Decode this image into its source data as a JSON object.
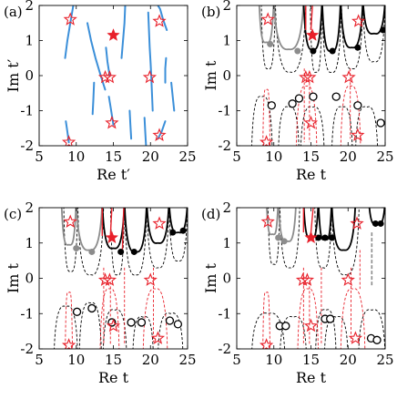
{
  "chart_data": [
    {
      "panel": "(a)",
      "type": "line",
      "xlabel": "Re t′",
      "ylabel": "Im t′",
      "xlim": [
        5,
        25
      ],
      "ylim": [
        -2,
        2
      ],
      "xticks": [
        "5",
        "10",
        "15",
        "20",
        "25"
      ],
      "yticks": [
        "-2",
        "-1",
        "0",
        "1",
        "2"
      ],
      "colors": {
        "curve": "#3b8fd9",
        "star": "#e8202a"
      },
      "curves": [
        [
          [
            9.6,
            2.0
          ],
          [
            9.2,
            1.5
          ],
          [
            8.8,
            1.0
          ],
          [
            8.5,
            0.5
          ]
        ],
        [
          [
            8.6,
            -1.3
          ],
          [
            8.8,
            -1.6
          ],
          [
            9.0,
            -1.9
          ]
        ],
        [
          [
            11.5,
            1.5
          ],
          [
            12.0,
            1.0
          ],
          [
            12.6,
            0.5
          ],
          [
            13.3,
            0.0
          ],
          [
            13.9,
            -0.4
          ]
        ],
        [
          [
            12.4,
            -0.2
          ],
          [
            12.3,
            -0.7
          ],
          [
            12.2,
            -1.1
          ]
        ],
        [
          [
            14.0,
            0.8
          ],
          [
            14.2,
            0.4
          ],
          [
            14.5,
            0.0
          ]
        ],
        [
          [
            14.4,
            -0.6
          ],
          [
            14.7,
            -1.0
          ],
          [
            15.0,
            -1.4
          ]
        ],
        [
          [
            16.6,
            2.0
          ],
          [
            16.5,
            1.5
          ],
          [
            16.3,
            1.0
          ],
          [
            16.1,
            0.5
          ]
        ],
        [
          [
            17.2,
            -1.0
          ],
          [
            17.3,
            -1.4
          ],
          [
            17.4,
            -1.8
          ]
        ],
        [
          [
            19.7,
            1.8
          ],
          [
            19.8,
            1.3
          ],
          [
            19.9,
            0.8
          ],
          [
            20.0,
            0.4
          ],
          [
            20.1,
            0.0
          ],
          [
            20.2,
            -0.5
          ],
          [
            20.3,
            -1.0
          ]
        ],
        [
          [
            19.2,
            -1.2
          ],
          [
            19.3,
            -1.6
          ],
          [
            19.4,
            -2.0
          ]
        ],
        [
          [
            21.0,
            2.0
          ],
          [
            21.3,
            1.9
          ],
          [
            21.7,
            1.6
          ],
          [
            22.2,
            1.3
          ]
        ],
        [
          [
            22.1,
            0.5
          ],
          [
            22.0,
            0.2
          ],
          [
            22.0,
            -0.2
          ]
        ],
        [
          [
            22.8,
            -0.2
          ],
          [
            23.0,
            -0.6
          ],
          [
            23.2,
            -1.0
          ]
        ],
        [
          [
            22.0,
            -1.3
          ],
          [
            21.5,
            -1.6
          ],
          [
            21.0,
            -1.8
          ]
        ]
      ],
      "open_stars": [
        [
          9.2,
          1.6
        ],
        [
          13.9,
          -0.05
        ],
        [
          14.5,
          -0.05
        ],
        [
          14.8,
          -1.35
        ],
        [
          19.9,
          -0.05
        ],
        [
          21.2,
          1.55
        ],
        [
          21.2,
          -1.7
        ],
        [
          9.0,
          -1.9
        ]
      ],
      "filled_stars": [
        [
          15.0,
          1.15
        ]
      ]
    },
    {
      "panel": "(b)",
      "type": "line",
      "xlabel": "Re t",
      "ylabel": "Im t",
      "xlim": [
        5,
        25
      ],
      "ylim": [
        -2,
        2
      ],
      "xticks": [
        "5",
        "10",
        "15",
        "20",
        "25"
      ],
      "yticks": [
        "-2",
        "-1",
        "0",
        "1",
        "2"
      ],
      "colors": {
        "black": "#000000",
        "gray": "#8c8c8c",
        "red": "#e8202a"
      },
      "solid_arcs": [
        {
          "x1": 8,
          "x2": 10,
          "bottom": 0.95,
          "color": "gray"
        },
        {
          "x1": 10,
          "x2": 14,
          "bottom": 0.75,
          "color": "gray"
        },
        {
          "x1": 14,
          "x2": 16.5,
          "bottom": 0.75,
          "color": "black"
        },
        {
          "x1": 16.5,
          "x2": 19,
          "bottom": 0.7,
          "color": "black"
        },
        {
          "x1": 19,
          "x2": 22,
          "bottom": 0.8,
          "color": "black"
        },
        {
          "x1": 22,
          "x2": 25,
          "bottom": 1.2,
          "color": "black"
        }
      ],
      "red_lines": [
        [
          14.3,
          1.3,
          14.3,
          2.0
        ],
        [
          15.0,
          1.3,
          15.2,
          2.0
        ]
      ],
      "dashed_arcs": [
        {
          "x1": 8.3,
          "x2": 10.2,
          "bottom": 0.2,
          "color": "black"
        },
        {
          "x1": 10.2,
          "x2": 14.3,
          "bottom": 0.1,
          "color": "black"
        },
        {
          "x1": 14.9,
          "x2": 16.5,
          "bottom": 0.1,
          "color": "black"
        },
        {
          "x1": 16.5,
          "x2": 19.1,
          "bottom": 0.1,
          "color": "black"
        },
        {
          "x1": 19.1,
          "x2": 22,
          "bottom": 0.2,
          "color": "black"
        },
        {
          "x1": 22,
          "x2": 25,
          "bottom": 0.4,
          "color": "black"
        }
      ],
      "dashed_loops": [
        {
          "x1": 7,
          "x2": 9.8,
          "top": -0.6,
          "color": "black"
        },
        {
          "x1": 10.6,
          "x2": 13.4,
          "top": -0.9,
          "color": "black"
        },
        {
          "x1": 13.6,
          "x2": 16.8,
          "top": -0.9,
          "color": "black"
        },
        {
          "x1": 17.8,
          "x2": 20.6,
          "top": -0.9,
          "color": "black"
        },
        {
          "x1": 21.0,
          "x2": 24.0,
          "top": -0.9,
          "color": "black"
        },
        {
          "x1": 8.5,
          "x2": 9.5,
          "top": -0.4,
          "color": "red"
        },
        {
          "x1": 13.0,
          "x2": 15.8,
          "top": -0.3,
          "color": "red"
        },
        {
          "x1": 19.0,
          "x2": 21.7,
          "top": -0.3,
          "color": "red"
        }
      ],
      "red_dashed_vertical": [
        [
          14.1,
          0.2,
          14.1,
          -1.9
        ],
        [
          14.8,
          -0.2,
          14.8,
          -1.9
        ],
        [
          20.3,
          0.2,
          20.3,
          -1.8
        ]
      ],
      "open_stars": [
        [
          9.2,
          1.6
        ],
        [
          14.3,
          -0.05
        ],
        [
          14.8,
          -0.05
        ],
        [
          15.0,
          -1.35
        ],
        [
          20.1,
          -0.05
        ],
        [
          21.4,
          1.55
        ],
        [
          21.3,
          -1.7
        ],
        [
          9.0,
          -1.9
        ]
      ],
      "filled_stars": [
        [
          15.2,
          1.15
        ]
      ],
      "filled_dots_gray": [
        [
          9.5,
          0.9
        ],
        [
          13.2,
          0.7
        ]
      ],
      "filled_dots_black": [
        [
          15.3,
          0.7
        ],
        [
          17.9,
          0.7
        ],
        [
          21.3,
          0.8
        ],
        [
          24.7,
          1.3
        ]
      ],
      "open_circles": [
        [
          9.7,
          -0.85
        ],
        [
          12.5,
          -0.8
        ],
        [
          15.3,
          -0.6
        ],
        [
          18.4,
          -0.6
        ],
        [
          21.3,
          -0.85
        ],
        [
          24.4,
          -1.35
        ],
        [
          13.4,
          -0.65
        ]
      ]
    },
    {
      "panel": "(c)",
      "type": "line",
      "xlabel": "Re t",
      "ylabel": "Im t",
      "xlim": [
        5,
        25
      ],
      "ylim": [
        -2,
        2
      ],
      "xticks": [
        "5",
        "10",
        "15",
        "20",
        "25"
      ],
      "yticks": [
        "-2",
        "-1",
        "0",
        "1",
        "2"
      ],
      "colors": {
        "black": "#000000",
        "gray": "#8c8c8c",
        "red": "#e8202a"
      },
      "solid_arcs": [
        {
          "x1": 8,
          "x2": 10,
          "bottom": 0.95,
          "color": "gray"
        },
        {
          "x1": 10,
          "x2": 13.5,
          "bottom": 0.8,
          "color": "gray"
        },
        {
          "x1": 13.5,
          "x2": 16.5,
          "bottom": 0.85,
          "color": "black"
        },
        {
          "x1": 16.5,
          "x2": 19.5,
          "bottom": 0.75,
          "color": "black"
        },
        {
          "x1": 19.5,
          "x2": 22.5,
          "bottom": 1.0,
          "color": "black"
        },
        {
          "x1": 22.5,
          "x2": 25,
          "bottom": 1.3,
          "color": "black"
        }
      ],
      "red_lines": [
        [
          13.5,
          1.2,
          13.5,
          2.0
        ],
        [
          14.6,
          1.2,
          14.8,
          2.0
        ],
        [
          16.2,
          0.7,
          16.4,
          2.0
        ]
      ],
      "dashed_arcs": [
        {
          "x1": 8.3,
          "x2": 10.2,
          "bottom": 0.2,
          "color": "black"
        },
        {
          "x1": 10.2,
          "x2": 13.7,
          "bottom": 0.1,
          "color": "black"
        },
        {
          "x1": 14.6,
          "x2": 16.5,
          "bottom": 0.1,
          "color": "black"
        },
        {
          "x1": 16.5,
          "x2": 19.5,
          "bottom": 0.1,
          "color": "black"
        },
        {
          "x1": 19.5,
          "x2": 22.5,
          "bottom": 0.3,
          "color": "black"
        },
        {
          "x1": 22.5,
          "x2": 25,
          "bottom": 0.5,
          "color": "black"
        }
      ],
      "dashed_loops": [
        {
          "x1": 7,
          "x2": 10.2,
          "top": -0.8,
          "color": "black"
        },
        {
          "x1": 10.4,
          "x2": 13.4,
          "top": -0.7,
          "color": "black"
        },
        {
          "x1": 13.6,
          "x2": 16.8,
          "top": -0.9,
          "color": "black"
        },
        {
          "x1": 17.6,
          "x2": 20.4,
          "top": -1.1,
          "color": "black"
        },
        {
          "x1": 21.0,
          "x2": 24.4,
          "top": -1.0,
          "color": "black"
        },
        {
          "x1": 8.5,
          "x2": 9.5,
          "top": -0.4,
          "color": "red"
        },
        {
          "x1": 13.2,
          "x2": 15.8,
          "top": -0.3,
          "color": "red"
        },
        {
          "x1": 19.0,
          "x2": 22.3,
          "top": -0.3,
          "color": "red"
        }
      ],
      "red_dashed_vertical": [
        [
          13.7,
          0.3,
          13.7,
          -1.9
        ],
        [
          14.6,
          -0.1,
          14.6,
          -1.9
        ],
        [
          16.5,
          0.3,
          16.5,
          -1.9
        ],
        [
          20.4,
          0.3,
          20.4,
          -1.8
        ]
      ],
      "open_stars": [
        [
          9.2,
          1.6
        ],
        [
          13.9,
          -0.05
        ],
        [
          14.5,
          -0.05
        ],
        [
          15.0,
          -1.35
        ],
        [
          20.0,
          -0.05
        ],
        [
          21.2,
          1.55
        ],
        [
          21.0,
          -1.7
        ],
        [
          9.0,
          -1.9
        ]
      ],
      "filled_stars": [
        [
          14.8,
          1.15
        ]
      ],
      "filled_dots_gray": [
        [
          10.0,
          0.85
        ],
        [
          12.1,
          0.75
        ]
      ],
      "filled_dots_black": [
        [
          16.0,
          0.75
        ],
        [
          17.8,
          0.75
        ],
        [
          23.0,
          1.3
        ],
        [
          24.4,
          1.35
        ]
      ],
      "open_circles": [
        [
          10.1,
          -0.95
        ],
        [
          12.1,
          -0.85
        ],
        [
          14.8,
          -1.25
        ],
        [
          17.4,
          -1.25
        ],
        [
          18.8,
          -1.25
        ],
        [
          22.6,
          -1.2
        ],
        [
          23.7,
          -1.3
        ]
      ]
    },
    {
      "panel": "(d)",
      "type": "line",
      "xlabel": "Re t",
      "ylabel": "Im t",
      "xlim": [
        5,
        25
      ],
      "ylim": [
        -2,
        2
      ],
      "xticks": [
        "5",
        "10",
        "15",
        "20",
        "25"
      ],
      "yticks": [
        "-2",
        "-1",
        "0",
        "1",
        "2"
      ],
      "colors": {
        "black": "#000000",
        "gray": "#8c8c8c",
        "red": "#e8202a"
      },
      "solid_arcs": [
        {
          "x1": 9,
          "x2": 10.6,
          "bottom": 1.25,
          "color": "gray"
        },
        {
          "x1": 10.6,
          "x2": 13,
          "bottom": 1.05,
          "color": "gray"
        },
        {
          "x1": 14,
          "x2": 16,
          "bottom": 1.15,
          "color": "black"
        },
        {
          "x1": 16,
          "x2": 17.8,
          "bottom": 1.1,
          "color": "black"
        },
        {
          "x1": 17.8,
          "x2": 21,
          "bottom": 0.8,
          "color": "black"
        },
        {
          "x1": 22.8,
          "x2": 25,
          "bottom": 1.55,
          "color": "black"
        }
      ],
      "red_lines": [
        [
          14.0,
          1.3,
          14.0,
          2.0
        ],
        [
          15.0,
          1.3,
          15.3,
          2.0
        ]
      ],
      "dashed_arcs": [
        {
          "x1": 9.2,
          "x2": 10.8,
          "bottom": 0.4,
          "color": "black"
        },
        {
          "x1": 10.8,
          "x2": 13.5,
          "bottom": 0.3,
          "color": "black"
        },
        {
          "x1": 15.5,
          "x2": 17.8,
          "bottom": 0.3,
          "color": "black"
        },
        {
          "x1": 17.8,
          "x2": 21.5,
          "bottom": 0.1,
          "color": "black"
        }
      ],
      "dashed_loops": [
        {
          "x1": 7,
          "x2": 11.5,
          "top": -1.0,
          "color": "black"
        },
        {
          "x1": 10.8,
          "x2": 14.4,
          "top": -1.1,
          "color": "black"
        },
        {
          "x1": 15.6,
          "x2": 18.4,
          "top": -0.9,
          "color": "black"
        },
        {
          "x1": 16.8,
          "x2": 20.0,
          "top": -1.1,
          "color": "black"
        },
        {
          "x1": 21.4,
          "x2": 25,
          "top": -0.9,
          "color": "black"
        },
        {
          "x1": 8.5,
          "x2": 9.5,
          "top": -0.4,
          "color": "red"
        },
        {
          "x1": 13.2,
          "x2": 16.0,
          "top": -0.3,
          "color": "red"
        },
        {
          "x1": 19.0,
          "x2": 22.3,
          "top": -0.3,
          "color": "red"
        }
      ],
      "red_dashed_vertical": [
        [
          14.0,
          0.3,
          14.0,
          -1.9
        ],
        [
          14.8,
          -0.1,
          14.8,
          -1.9
        ],
        [
          16.4,
          0.3,
          16.4,
          -1.9
        ],
        [
          20.4,
          0.3,
          20.4,
          -1.8
        ],
        [
          21.6,
          0.8,
          21.6,
          -0.3
        ]
      ],
      "gray_dashed_vertical": [
        [
          23.2,
          1.3,
          23.2,
          -0.2
        ]
      ],
      "open_stars": [
        [
          9.2,
          1.6
        ],
        [
          13.9,
          -0.05
        ],
        [
          14.5,
          -0.05
        ],
        [
          15.0,
          -1.35
        ],
        [
          20.0,
          -0.05
        ],
        [
          21.2,
          1.55
        ],
        [
          21.0,
          -1.7
        ],
        [
          9.0,
          -1.9
        ]
      ],
      "filled_stars": [
        [
          15.0,
          1.15
        ]
      ],
      "filled_dots_gray": [
        [
          10.6,
          1.15
        ],
        [
          11.4,
          1.05
        ]
      ],
      "filled_dots_black": [
        [
          16.0,
          1.15
        ],
        [
          16.9,
          1.15
        ],
        [
          17.8,
          1.15
        ],
        [
          23.7,
          1.55
        ],
        [
          24.4,
          1.55
        ]
      ],
      "open_circles": [
        [
          10.8,
          -1.35
        ],
        [
          11.6,
          -1.35
        ],
        [
          16.9,
          -1.15
        ],
        [
          17.6,
          -1.15
        ],
        [
          23.1,
          -1.7
        ],
        [
          23.9,
          -1.75
        ]
      ]
    }
  ]
}
